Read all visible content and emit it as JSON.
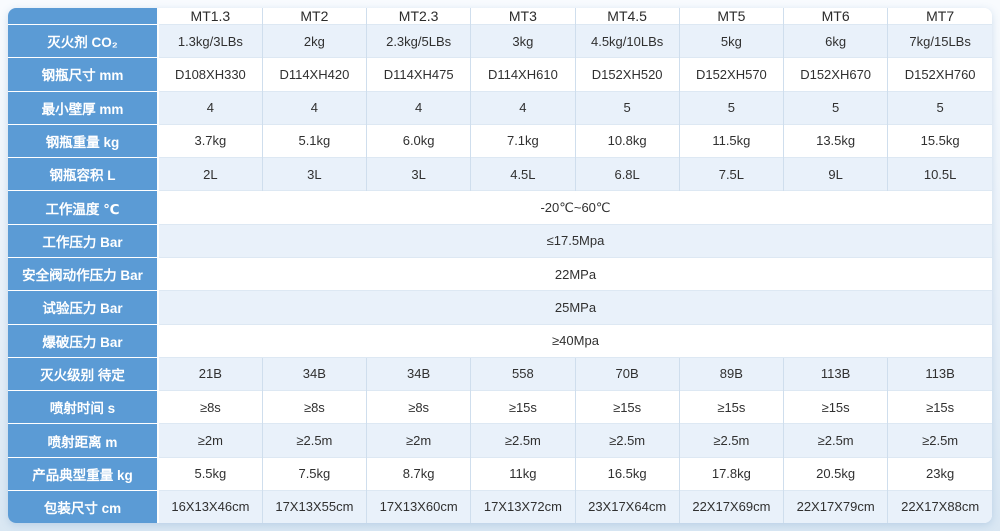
{
  "table": {
    "corner_label": "",
    "models": [
      "MT1.3",
      "MT2",
      "MT2.3",
      "MT3",
      "MT4.5",
      "MT5",
      "MT6",
      "MT7"
    ],
    "rows": [
      {
        "label": "灭火剂 CO₂",
        "type": "cells",
        "values": [
          "1.3kg/3LBs",
          "2kg",
          "2.3kg/5LBs",
          "3kg",
          "4.5kg/10LBs",
          "5kg",
          "6kg",
          "7kg/15LBs"
        ]
      },
      {
        "label": "钢瓶尺寸 mm",
        "type": "cells",
        "values": [
          "D108XH330",
          "D114XH420",
          "D114XH475",
          "D114XH610",
          "D152XH520",
          "D152XH570",
          "D152XH670",
          "D152XH760"
        ]
      },
      {
        "label": "最小壁厚 mm",
        "type": "cells",
        "values": [
          "4",
          "4",
          "4",
          "4",
          "5",
          "5",
          "5",
          "5"
        ]
      },
      {
        "label": "钢瓶重量 kg",
        "type": "cells",
        "values": [
          "3.7kg",
          "5.1kg",
          "6.0kg",
          "7.1kg",
          "10.8kg",
          "11.5kg",
          "13.5kg",
          "15.5kg"
        ]
      },
      {
        "label": "钢瓶容积 L",
        "type": "cells",
        "values": [
          "2L",
          "3L",
          "3L",
          "4.5L",
          "6.8L",
          "7.5L",
          "9L",
          "10.5L"
        ]
      },
      {
        "label": "工作温度 ℃",
        "type": "merged",
        "value": "-20℃~60℃"
      },
      {
        "label": "工作压力 Bar",
        "type": "merged",
        "value": "≤17.5Mpa"
      },
      {
        "label": "安全阀动作压力 Bar",
        "type": "merged",
        "value": "22MPa"
      },
      {
        "label": "试验压力 Bar",
        "type": "merged",
        "value": "25MPa"
      },
      {
        "label": "爆破压力 Bar",
        "type": "merged",
        "value": "≥40Mpa"
      },
      {
        "label": "灭火级别 待定",
        "type": "cells",
        "values": [
          "21B",
          "34B",
          "34B",
          "558",
          "70B",
          "89B",
          "113B",
          "113B"
        ]
      },
      {
        "label": "喷射时间 s",
        "type": "cells",
        "values": [
          "≥8s",
          "≥8s",
          "≥8s",
          "≥15s",
          "≥15s",
          "≥15s",
          "≥15s",
          "≥15s"
        ]
      },
      {
        "label": "喷射距离 m",
        "type": "cells",
        "values": [
          "≥2m",
          "≥2.5m",
          "≥2m",
          "≥2.5m",
          "≥2.5m",
          "≥2.5m",
          "≥2.5m",
          "≥2.5m"
        ]
      },
      {
        "label": "产品典型重量 kg",
        "type": "cells",
        "values": [
          "5.5kg",
          "7.5kg",
          "8.7kg",
          "11kg",
          "16.5kg",
          "17.8kg",
          "20.5kg",
          "23kg"
        ]
      },
      {
        "label": "包装尺寸 cm",
        "type": "cells",
        "values": [
          "16X13X46cm",
          "17X13X55cm",
          "17X13X60cm",
          "17X13X72cm",
          "23X17X64cm",
          "22X17X69cm",
          "22X17X79cm",
          "22X17X88cm"
        ]
      }
    ],
    "colors": {
      "label_bg": "#5b9bd5",
      "row_alt_bg": "#e9f1fa",
      "row_bg": "#ffffff",
      "grid_vline": "#cfdeed",
      "grid_hline": "#dde8f3",
      "label_text": "#ffffff",
      "cell_text": "#303030"
    }
  }
}
